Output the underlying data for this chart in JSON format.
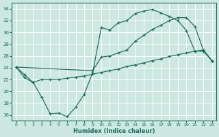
{
  "xlabel": "Humidex (Indice chaleur)",
  "bg_color": "#cce8e0",
  "line_color": "#1a6b5e",
  "grid_color": "#ffffff",
  "xlim": [
    -0.5,
    23.5
  ],
  "ylim": [
    15,
    35
  ],
  "xticks": [
    0,
    1,
    2,
    3,
    4,
    5,
    6,
    7,
    8,
    9,
    10,
    11,
    12,
    13,
    14,
    15,
    16,
    17,
    18,
    19,
    20,
    21,
    22,
    23
  ],
  "yticks": [
    16,
    18,
    20,
    22,
    24,
    26,
    28,
    30,
    32,
    34
  ],
  "line1_x": [
    0,
    1,
    2,
    3,
    4,
    5,
    6,
    7,
    8,
    9,
    10,
    11,
    12,
    13,
    14,
    15,
    16,
    17,
    18,
    19,
    20,
    21,
    22,
    23
  ],
  "line1_y": [
    24.1,
    22.8,
    21.5,
    19.0,
    16.2,
    16.3,
    15.7,
    17.3,
    19.5,
    23.2,
    30.8,
    30.4,
    31.6,
    32.0,
    33.2,
    33.6,
    33.9,
    33.3,
    32.7,
    32.0,
    30.3,
    26.8,
    26.8,
    25.2
  ],
  "line2_x": [
    0,
    9,
    10,
    11,
    12,
    13,
    14,
    15,
    16,
    17,
    18,
    19,
    20,
    21,
    22,
    23
  ],
  "line2_y": [
    24.1,
    23.5,
    25.8,
    26.0,
    26.5,
    27.0,
    28.5,
    29.5,
    30.5,
    31.2,
    32.0,
    32.5,
    32.5,
    31.0,
    27.0,
    25.2
  ],
  "line3_x": [
    0,
    1,
    2,
    3,
    4,
    5,
    6,
    7,
    8,
    9,
    10,
    11,
    12,
    13,
    14,
    15,
    16,
    17,
    18,
    19,
    20,
    21,
    22,
    23
  ],
  "line3_y": [
    24.1,
    22.3,
    21.5,
    22.0,
    22.0,
    22.0,
    22.2,
    22.4,
    22.6,
    22.9,
    23.2,
    23.5,
    23.8,
    24.2,
    24.5,
    24.8,
    25.2,
    25.5,
    25.9,
    26.2,
    26.5,
    26.8,
    27.0,
    25.2
  ]
}
